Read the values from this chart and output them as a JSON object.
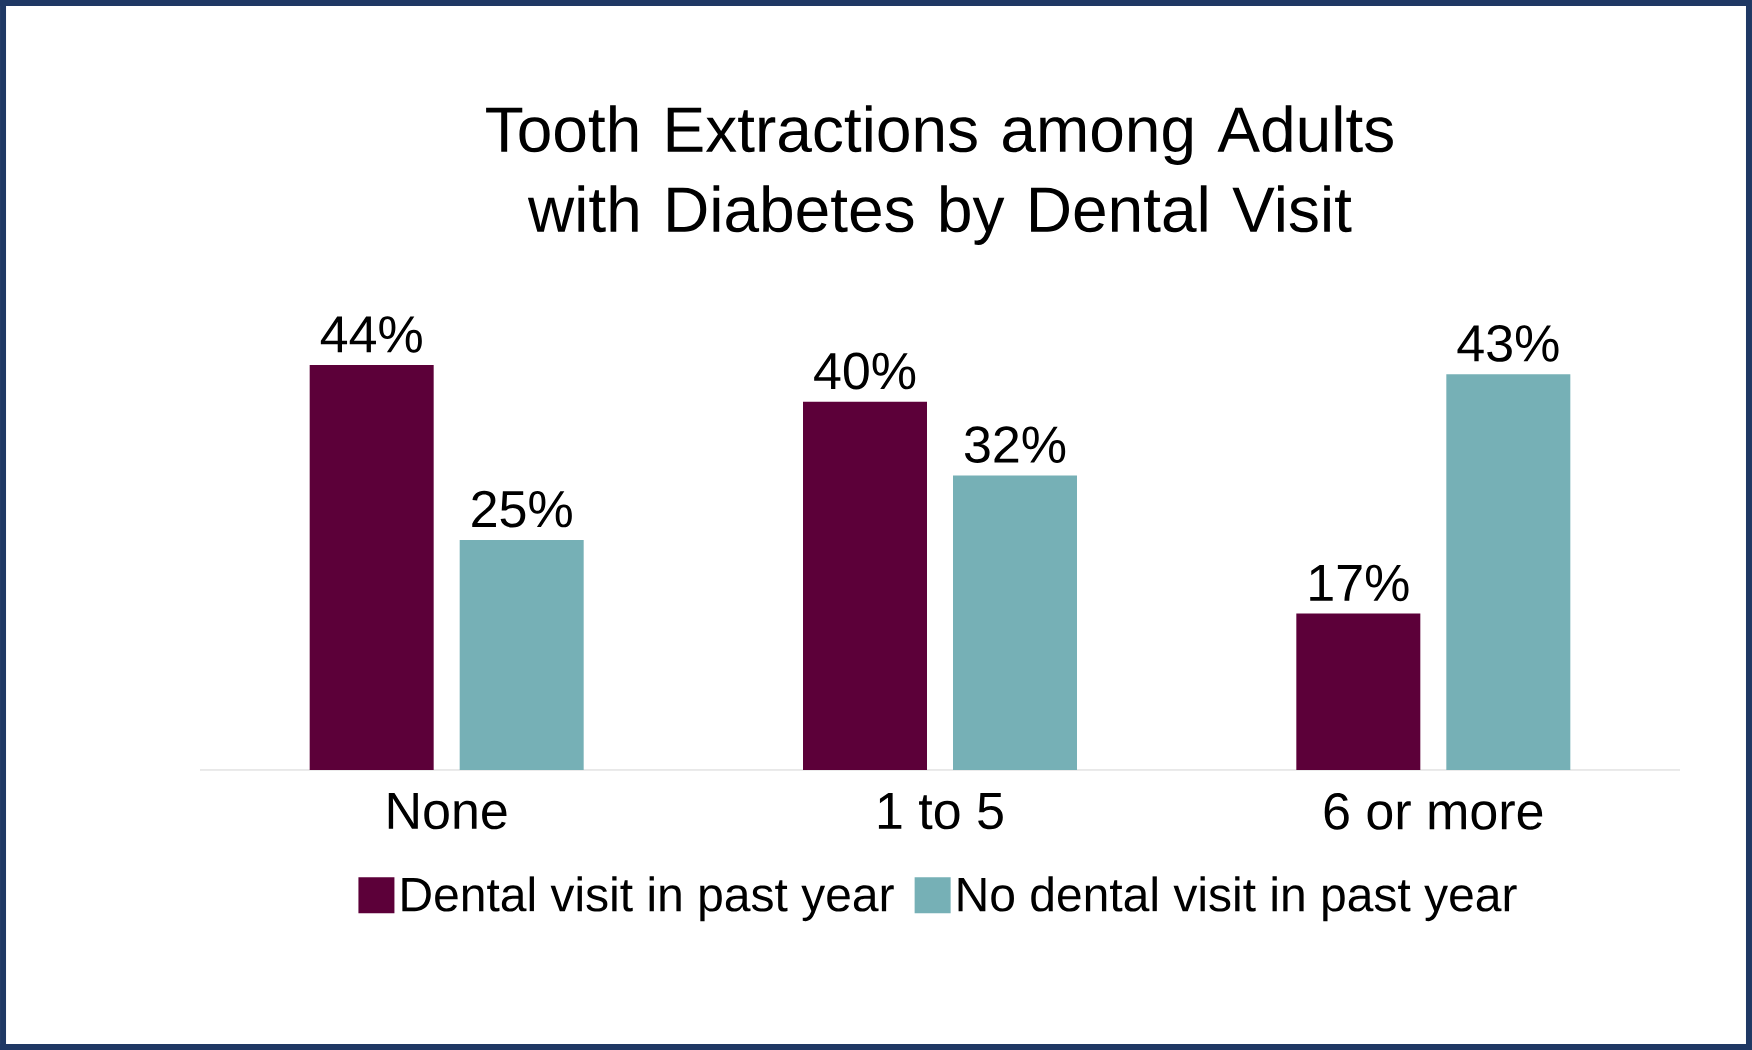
{
  "chart_data": {
    "type": "bar",
    "title": "Tooth Extractions among Adults with Diabetes by Dental Visit",
    "categories": [
      "None",
      "1 to 5",
      "6 or more"
    ],
    "series": [
      {
        "name": "Dental visit in past year",
        "color": "#5c0039",
        "values": [
          44,
          40,
          17
        ],
        "value_labels": [
          "44%",
          "40%",
          "17%"
        ]
      },
      {
        "name": "No dental visit in past year",
        "color": "#76b0b6",
        "values": [
          25,
          32,
          43
        ],
        "value_labels": [
          "25%",
          "32%",
          "43%"
        ]
      }
    ],
    "legend": "bottom"
  }
}
